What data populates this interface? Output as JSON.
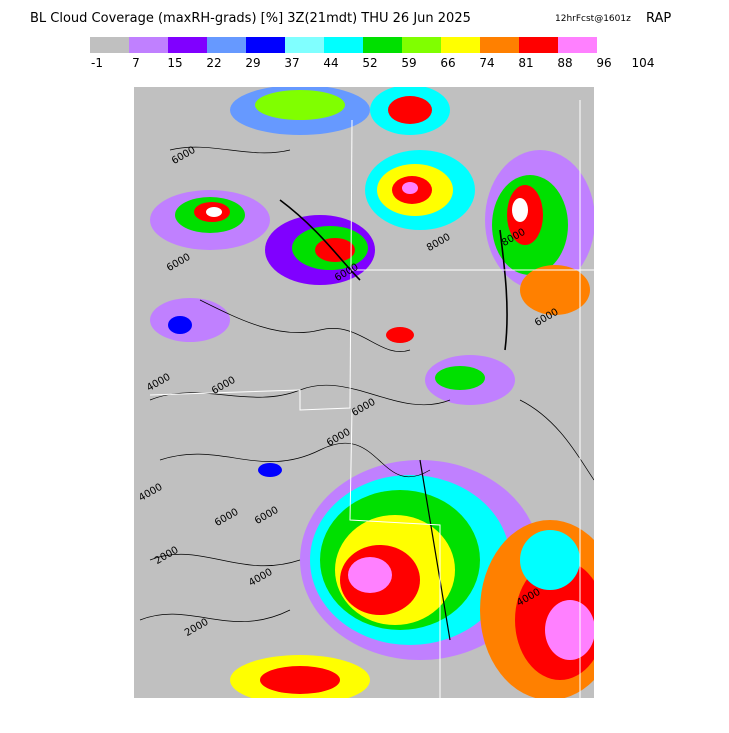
{
  "header": {
    "title": "BL Cloud Coverage (maxRH-grads) [%] 3Z(21mdt) THU 26 Jun 2025",
    "forecast": "12hrFcst@1601z",
    "model": "RAP"
  },
  "colorbar": {
    "colors": [
      "#c0c0c0",
      "#c080ff",
      "#8000ff",
      "#6699ff",
      "#0000ff",
      "#80ffff",
      "#00ffff",
      "#00e000",
      "#80ff00",
      "#ffff00",
      "#ff8000",
      "#ff0000",
      "#ff80ff"
    ],
    "labels": [
      -1,
      7,
      15,
      22,
      29,
      37,
      44,
      52,
      59,
      66,
      74,
      81,
      88,
      96,
      104
    ]
  },
  "contour_labels": [
    "6000",
    "6000",
    "4000",
    "6000",
    "6000",
    "6000",
    "8000",
    "4000",
    "6000",
    "6000",
    "2000",
    "4000",
    "2000",
    "6000",
    "8000",
    "6000",
    "4000"
  ]
}
